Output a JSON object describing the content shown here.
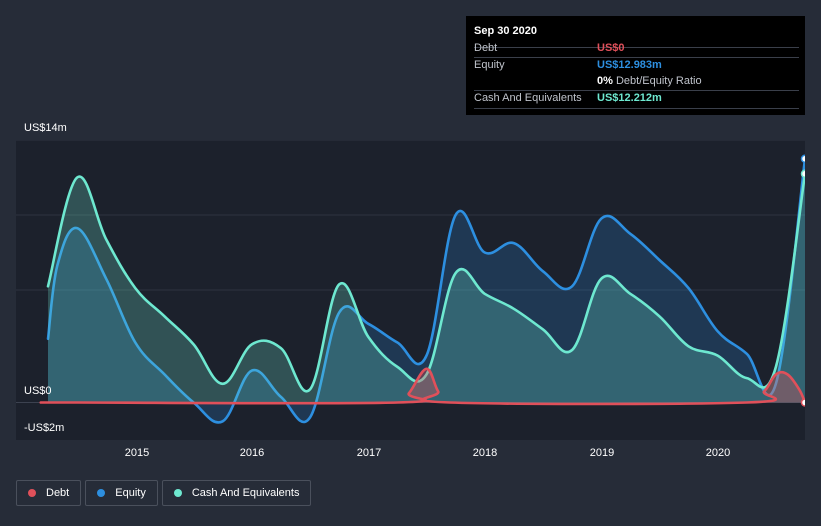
{
  "tooltip": {
    "date": "Sep 30 2020",
    "debt_label": "Debt",
    "debt_value": "US$0",
    "equity_label": "Equity",
    "equity_value": "US$12.983m",
    "ratio_value": "0%",
    "ratio_label": "Debt/Equity Ratio",
    "cash_label": "Cash And Equivalents",
    "cash_value": "US$12.212m"
  },
  "colors": {
    "debt": "#e0505a",
    "equity": "#2d8fe0",
    "cash": "#6ee8d0",
    "background": "#262c38",
    "plot": "#1c212c"
  },
  "legend": {
    "debt": "Debt",
    "equity": "Equity",
    "cash": "Cash And Equivalents"
  },
  "chart_data": {
    "type": "area",
    "y_axis_labels": [
      "US$14m",
      "US$0",
      "-US$2m"
    ],
    "xtick_labels": [
      "2015",
      "2016",
      "2017",
      "2018",
      "2019",
      "2020"
    ],
    "ylim": [
      -2,
      14
    ],
    "xlim": [
      2014.25,
      2020.75
    ],
    "grid": true,
    "legend_position": "bottom-left",
    "series": [
      {
        "name": "Debt",
        "points": [
          [
            2014.25,
            0
          ],
          [
            2014.5,
            0
          ],
          [
            2017.25,
            0
          ],
          [
            2017.35,
            0.5
          ],
          [
            2017.5,
            1.8
          ],
          [
            2017.6,
            0.6
          ],
          [
            2017.7,
            0
          ],
          [
            2020.25,
            0
          ],
          [
            2020.4,
            0.6
          ],
          [
            2020.5,
            1.5
          ],
          [
            2020.6,
            1.5
          ],
          [
            2020.7,
            0.7
          ],
          [
            2020.75,
            0
          ]
        ]
      },
      {
        "name": "Equity",
        "points": [
          [
            2014.25,
            3.4
          ],
          [
            2014.33,
            7.3
          ],
          [
            2014.5,
            9.3
          ],
          [
            2014.75,
            6.6
          ],
          [
            2015.0,
            3.2
          ],
          [
            2015.25,
            1.5
          ],
          [
            2015.5,
            0
          ],
          [
            2015.75,
            -1.0
          ],
          [
            2016.0,
            1.7
          ],
          [
            2016.25,
            0.3
          ],
          [
            2016.5,
            -0.8
          ],
          [
            2016.75,
            4.8
          ],
          [
            2017.0,
            4.2
          ],
          [
            2017.25,
            3.2
          ],
          [
            2017.5,
            2.5
          ],
          [
            2017.75,
            10.0
          ],
          [
            2018.0,
            8.0
          ],
          [
            2018.25,
            8.5
          ],
          [
            2018.5,
            7.0
          ],
          [
            2018.75,
            6.2
          ],
          [
            2019.0,
            9.8
          ],
          [
            2019.25,
            9.0
          ],
          [
            2019.5,
            7.6
          ],
          [
            2019.75,
            6.1
          ],
          [
            2020.0,
            3.8
          ],
          [
            2020.25,
            2.6
          ],
          [
            2020.5,
            1.0
          ],
          [
            2020.75,
            13.0
          ]
        ]
      },
      {
        "name": "Cash And Equivalents",
        "points": [
          [
            2014.25,
            6.2
          ],
          [
            2014.5,
            12.0
          ],
          [
            2014.75,
            8.7
          ],
          [
            2015.0,
            6.1
          ],
          [
            2015.25,
            4.6
          ],
          [
            2015.5,
            3.1
          ],
          [
            2015.75,
            1.0
          ],
          [
            2016.0,
            3.1
          ],
          [
            2016.25,
            2.9
          ],
          [
            2016.5,
            0.7
          ],
          [
            2016.75,
            6.3
          ],
          [
            2017.0,
            3.5
          ],
          [
            2017.25,
            1.9
          ],
          [
            2017.5,
            1.5
          ],
          [
            2017.75,
            6.9
          ],
          [
            2018.0,
            5.8
          ],
          [
            2018.25,
            5.0
          ],
          [
            2018.5,
            3.9
          ],
          [
            2018.75,
            2.8
          ],
          [
            2019.0,
            6.6
          ],
          [
            2019.25,
            5.8
          ],
          [
            2019.5,
            4.6
          ],
          [
            2019.75,
            3.0
          ],
          [
            2020.0,
            2.5
          ],
          [
            2020.25,
            1.3
          ],
          [
            2020.5,
            1.9
          ],
          [
            2020.75,
            12.2
          ]
        ]
      }
    ]
  }
}
